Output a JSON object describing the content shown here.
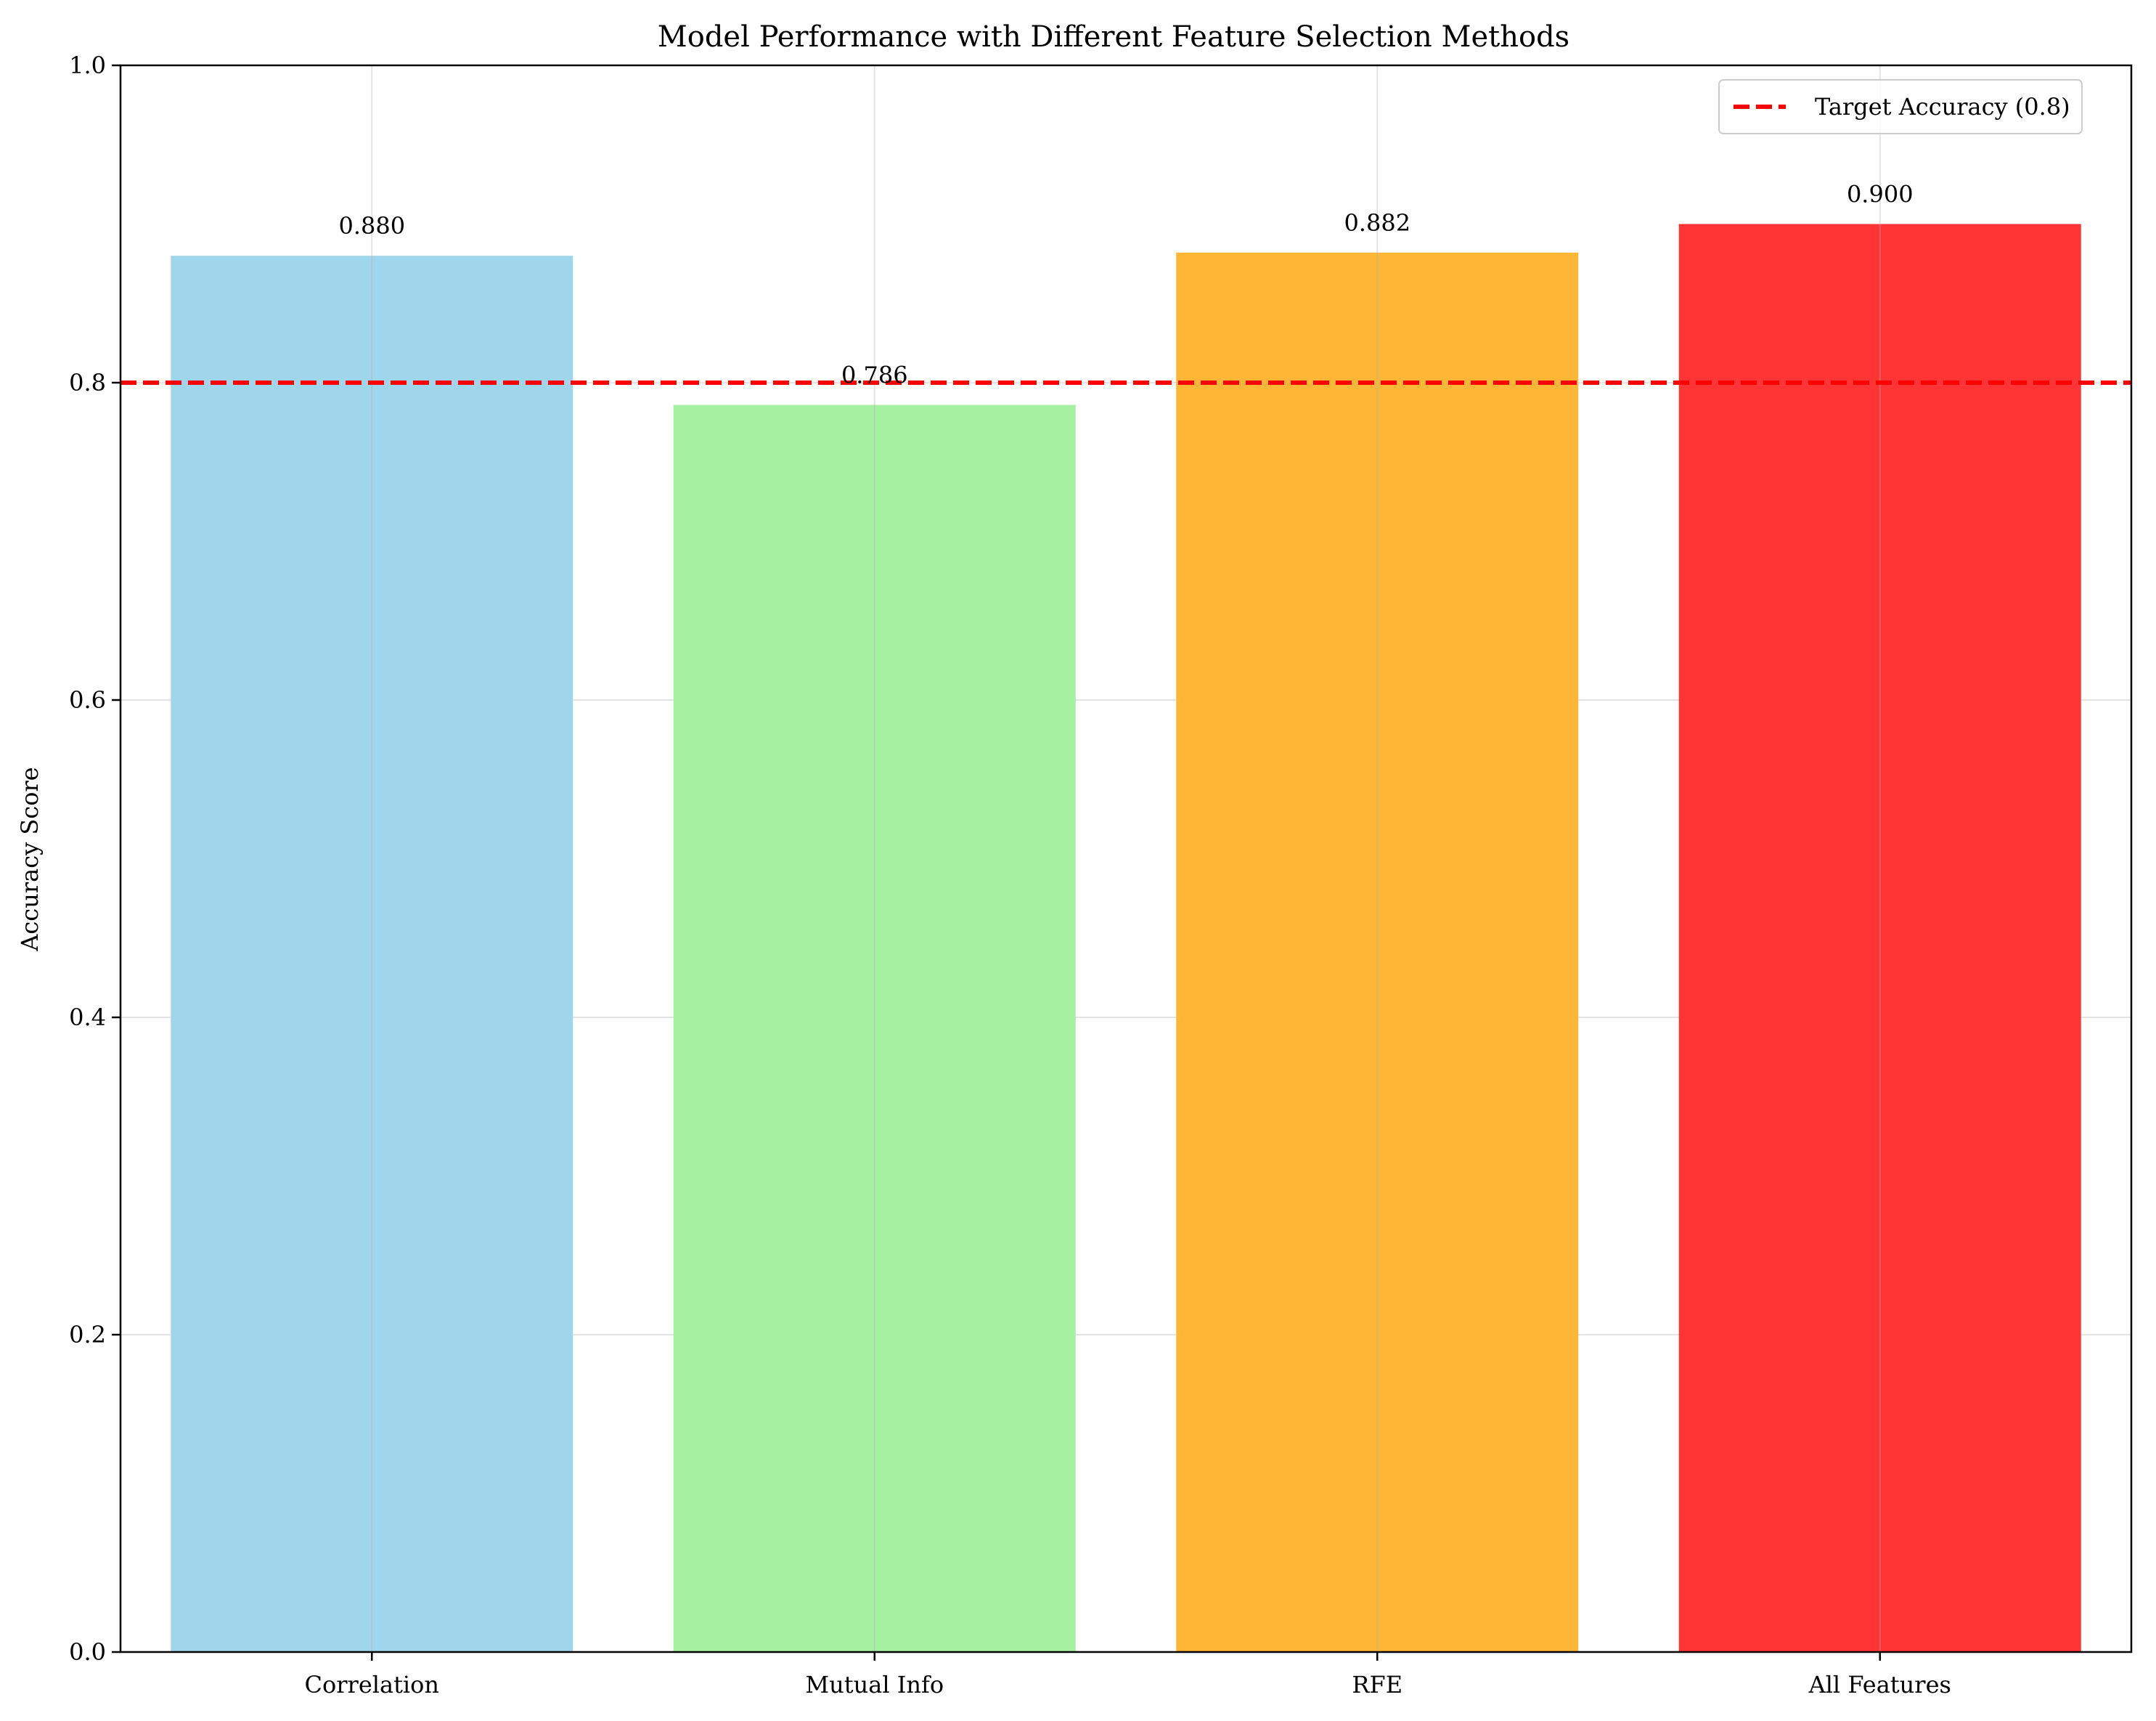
{
  "chart_data": {
    "type": "bar",
    "title": "Model Performance with Different Feature Selection Methods",
    "xlabel": "",
    "ylabel": "Accuracy Score",
    "categories": [
      "Correlation",
      "Mutual Info",
      "RFE",
      "All Features"
    ],
    "values": [
      0.88,
      0.786,
      0.882,
      0.9
    ],
    "value_labels": [
      "0.880",
      "0.786",
      "0.882",
      "0.900"
    ],
    "bar_colors": [
      "#A0D6EC",
      "#A6F0A2",
      "#FDB635",
      "#FF3435"
    ],
    "ylim": [
      0,
      1.0
    ],
    "yticks": [
      0.0,
      0.2,
      0.4,
      0.6,
      0.8,
      1.0
    ],
    "ytick_labels": [
      "0.0",
      "0.2",
      "0.4",
      "0.6",
      "0.8",
      "1.0"
    ],
    "grid": true,
    "reference_line": {
      "value": 0.8,
      "label": "Target Accuracy (0.8)",
      "color": "#FF0000",
      "style": "dashed"
    },
    "legend": {
      "placement": "top-right",
      "entries": [
        "Target Accuracy (0.8)"
      ]
    }
  }
}
